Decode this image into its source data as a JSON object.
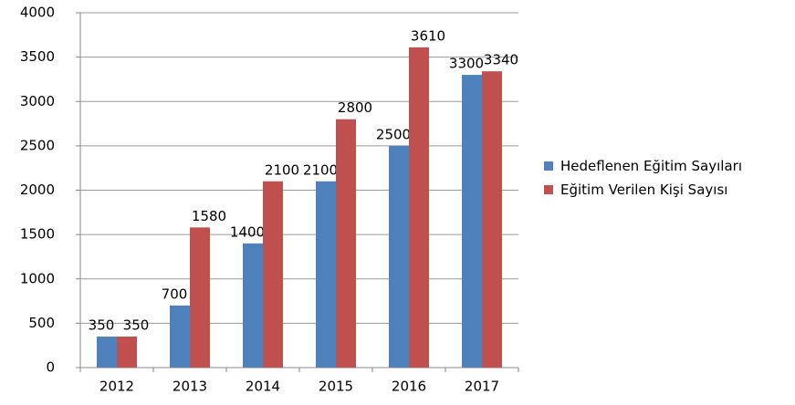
{
  "chart_data": {
    "type": "bar",
    "categories": [
      "2012",
      "2013",
      "2014",
      "2015",
      "2016",
      "2017"
    ],
    "series": [
      {
        "name": "Hedeflenen Eğitim Sayıları",
        "color": "#4f81bd",
        "values": [
          350,
          700,
          1400,
          2100,
          2500,
          3300
        ]
      },
      {
        "name": "Eğitim Verilen Kişi Sayısı",
        "color": "#c0504d",
        "values": [
          350,
          1580,
          2100,
          2800,
          3610,
          3340
        ]
      }
    ],
    "ylim": [
      0,
      4000
    ],
    "yticks": [
      0,
      500,
      1000,
      1500,
      2000,
      2500,
      3000,
      3500,
      4000
    ],
    "grid": true,
    "legend": "right"
  }
}
